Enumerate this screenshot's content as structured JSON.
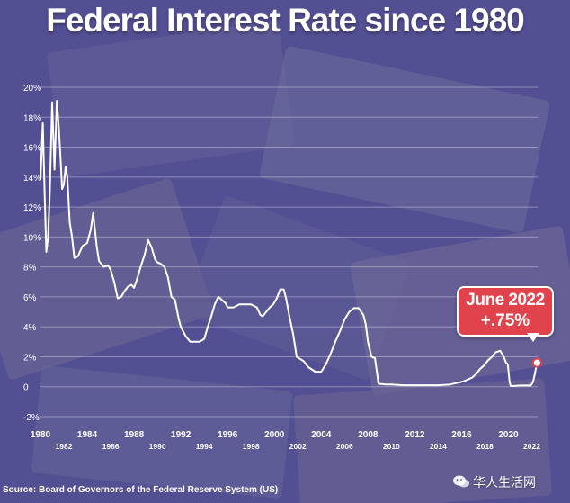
{
  "title": "Federal Interest Rate since 1980",
  "source": "Source: Board of Governors of the Federal Reserve System (US)",
  "annotation": {
    "line1": "June 2022",
    "line2": "+.75%"
  },
  "watermark": "华人生活网",
  "colors": {
    "line": "#ffffff",
    "callout": "#e0434b",
    "overlay": "#4e4896",
    "grid": "#ffffff"
  },
  "icons": {
    "watermark": "wechat-icon"
  },
  "chart_data": {
    "type": "line",
    "title": "Federal Interest Rate since 1980",
    "xlabel": "",
    "ylabel": "",
    "xlim": [
      1980,
      2022.5
    ],
    "ylim": [
      -2,
      20
    ],
    "y_ticks": [
      -2,
      0,
      2,
      4,
      6,
      8,
      10,
      12,
      14,
      16,
      18,
      20
    ],
    "y_tick_labels": [
      "-2%",
      "0",
      "2%",
      "4%",
      "6%",
      "8%",
      "10%",
      "12%",
      "14%",
      "16%",
      "18%",
      "20%"
    ],
    "x_ticks_upper": [
      1980,
      1984,
      1988,
      1992,
      1996,
      2000,
      2004,
      2008,
      2012,
      2016,
      2020
    ],
    "x_ticks_lower": [
      1982,
      1986,
      1990,
      1994,
      1998,
      2002,
      2006,
      2010,
      2014,
      2018,
      2022
    ],
    "grid": true,
    "legend": "none",
    "series": [
      {
        "x": [
          1980.0,
          1980.2,
          1980.35,
          1980.5,
          1980.65,
          1980.8,
          1981.0,
          1981.2,
          1981.4,
          1981.55,
          1981.7,
          1981.85,
          1982.0,
          1982.15,
          1982.3,
          1982.5,
          1982.7,
          1982.9,
          1983.2,
          1983.6,
          1984.0,
          1984.3,
          1984.5,
          1984.8,
          1985.0,
          1985.4,
          1985.8,
          1986.0,
          1986.3,
          1986.6,
          1986.9,
          1987.2,
          1987.5,
          1987.8,
          1988.0,
          1988.3,
          1988.6,
          1988.9,
          1989.2,
          1989.5,
          1989.8,
          1990.0,
          1990.3,
          1990.6,
          1990.9,
          1991.2,
          1991.5,
          1991.8,
          1992.0,
          1992.4,
          1992.8,
          1993.2,
          1993.6,
          1994.0,
          1994.3,
          1994.6,
          1994.9,
          1995.2,
          1995.5,
          1995.8,
          1996.0,
          1996.5,
          1997.0,
          1997.5,
          1998.0,
          1998.5,
          1998.8,
          1999.0,
          1999.3,
          1999.6,
          1999.9,
          2000.2,
          2000.5,
          2000.8,
          2001.0,
          2001.3,
          2001.6,
          2001.9,
          2002.5,
          2002.9,
          2003.5,
          2004.0,
          2004.4,
          2004.8,
          2005.2,
          2005.6,
          2006.0,
          2006.4,
          2006.8,
          2007.2,
          2007.6,
          2007.8,
          2008.0,
          2008.3,
          2008.6,
          2008.9,
          2009.5,
          2010.0,
          2011.0,
          2012.0,
          2013.0,
          2014.0,
          2015.0,
          2015.9,
          2016.3,
          2016.9,
          2017.3,
          2017.6,
          2017.9,
          2018.3,
          2018.6,
          2018.9,
          2019.3,
          2019.6,
          2019.8,
          2019.95,
          2020.1,
          2020.2,
          2020.5,
          2021.0,
          2021.5,
          2021.9,
          2022.1,
          2022.25,
          2022.35,
          2022.45
        ],
        "y": [
          13.8,
          17.6,
          13.0,
          9.0,
          10.0,
          13.0,
          19.0,
          14.5,
          19.1,
          17.5,
          15.5,
          13.2,
          13.5,
          14.7,
          14.0,
          11.0,
          10.0,
          8.6,
          8.7,
          9.4,
          9.6,
          10.5,
          11.6,
          9.4,
          8.4,
          8.0,
          8.1,
          7.8,
          7.0,
          5.9,
          6.0,
          6.4,
          6.7,
          6.8,
          6.6,
          7.3,
          8.1,
          8.8,
          9.8,
          9.3,
          8.5,
          8.3,
          8.2,
          8.0,
          7.3,
          6.0,
          5.8,
          4.6,
          4.0,
          3.4,
          3.0,
          3.0,
          3.0,
          3.2,
          4.0,
          4.7,
          5.5,
          6.0,
          5.8,
          5.6,
          5.3,
          5.3,
          5.5,
          5.5,
          5.5,
          5.3,
          4.8,
          4.7,
          5.0,
          5.3,
          5.5,
          5.9,
          6.5,
          6.5,
          5.9,
          4.6,
          3.5,
          2.0,
          1.7,
          1.3,
          1.0,
          1.0,
          1.5,
          2.2,
          3.0,
          3.7,
          4.5,
          5.0,
          5.25,
          5.25,
          4.8,
          4.2,
          3.0,
          2.0,
          1.9,
          0.2,
          0.15,
          0.15,
          0.1,
          0.1,
          0.1,
          0.1,
          0.15,
          0.3,
          0.4,
          0.6,
          0.9,
          1.2,
          1.4,
          1.8,
          2.0,
          2.3,
          2.4,
          2.0,
          1.6,
          1.5,
          0.3,
          0.05,
          0.05,
          0.08,
          0.08,
          0.08,
          0.3,
          0.8,
          1.2,
          1.6
        ]
      }
    ]
  }
}
